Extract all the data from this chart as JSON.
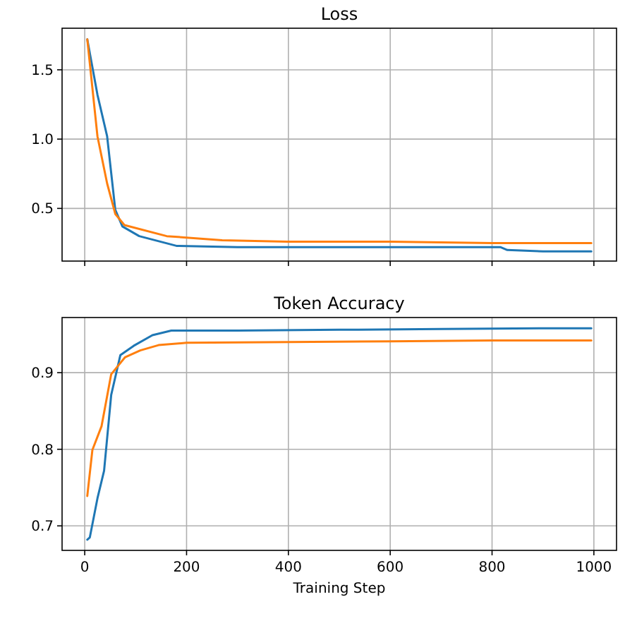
{
  "chart_data": [
    {
      "type": "line",
      "title": "Loss",
      "xlim": [
        -44.5,
        1044.5
      ],
      "xticks": [
        0,
        200,
        400,
        600,
        800,
        1000
      ],
      "ylim": [
        0.12,
        1.8
      ],
      "yticks": [
        0.5,
        {
          "value": 1,
          "label": "1.0"
        },
        1.5
      ],
      "grid": true,
      "tick_labels": "y",
      "series": [
        {
          "color": "#1f77b4",
          "x": [
            5,
            25,
            44,
            60,
            74,
            107,
            180,
            300,
            500,
            700,
            817,
            830,
            900,
            995
          ],
          "values": [
            1.72,
            1.32,
            1.02,
            0.49,
            0.37,
            0.3,
            0.23,
            0.22,
            0.22,
            0.22,
            0.22,
            0.2,
            0.19,
            0.19
          ]
        },
        {
          "color": "#ff7f0e",
          "x": [
            5,
            25,
            44,
            60,
            78,
            161,
            270,
            398,
            600,
            800,
            995
          ],
          "values": [
            1.72,
            1.02,
            0.68,
            0.46,
            0.38,
            0.3,
            0.27,
            0.26,
            0.26,
            0.25,
            0.25
          ]
        }
      ]
    },
    {
      "type": "line",
      "title": "Token Accuracy",
      "xlabel": "Training Step",
      "xlim": [
        -44.5,
        1044.5
      ],
      "xticks": [
        0,
        200,
        400,
        600,
        800,
        1000
      ],
      "ylim": [
        0.668,
        0.972
      ],
      "yticks": [
        0.7,
        0.8,
        0.9
      ],
      "grid": true,
      "series": [
        {
          "color": "#1f77b4",
          "x": [
            5,
            10,
            25,
            38,
            52,
            70,
            96,
            133,
            170,
            300,
            500,
            700,
            900,
            995
          ],
          "values": [
            0.682,
            0.685,
            0.736,
            0.772,
            0.871,
            0.923,
            0.935,
            0.949,
            0.955,
            0.955,
            0.956,
            0.957,
            0.958,
            0.958
          ]
        },
        {
          "color": "#ff7f0e",
          "x": [
            5,
            15,
            33,
            52,
            79,
            109,
            145,
            200,
            400,
            600,
            800,
            995
          ],
          "values": [
            0.739,
            0.799,
            0.83,
            0.898,
            0.92,
            0.929,
            0.936,
            0.939,
            0.94,
            0.941,
            0.942,
            0.942
          ]
        }
      ]
    }
  ]
}
